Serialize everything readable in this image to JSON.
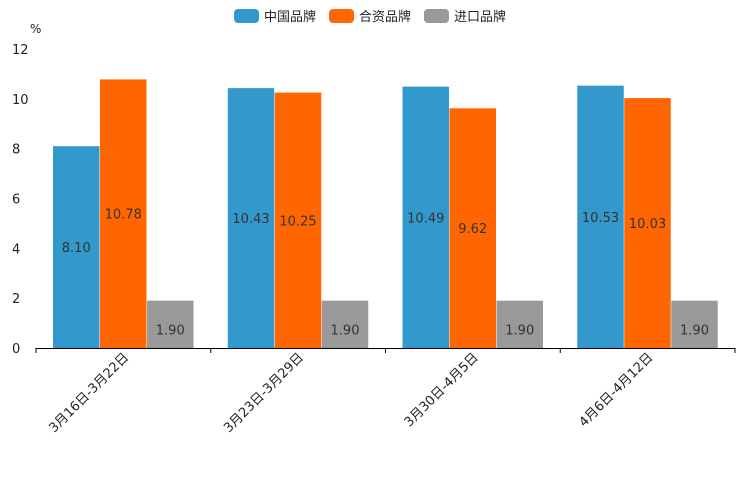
{
  "chart_data": {
    "type": "bar",
    "title": "",
    "xlabel": "",
    "ylabel": "%",
    "ylim": [
      0,
      12
    ],
    "yticks": [
      0,
      2,
      4,
      6,
      8,
      10,
      12
    ],
    "grid": false,
    "legend_position": "top-center",
    "categories": [
      "3月16日-3月22日",
      "3月23日-3月29日",
      "3月30日-4月5日",
      "4月6日-4月12日"
    ],
    "series": [
      {
        "name": "中国品牌",
        "color": "#3399cc",
        "values": [
          8.1,
          10.43,
          10.49,
          10.53
        ],
        "labels": [
          "8.10",
          "10.43",
          "10.49",
          "10.53"
        ]
      },
      {
        "name": "合资品牌",
        "color": "#ff6600",
        "values": [
          10.78,
          10.25,
          9.62,
          10.03
        ],
        "labels": [
          "10.78",
          "10.25",
          "9.62",
          "10.03"
        ]
      },
      {
        "name": "进口品牌",
        "color": "#999999",
        "values": [
          1.9,
          1.9,
          1.9,
          1.9
        ],
        "labels": [
          "1.90",
          "1.90",
          "1.90",
          "1.90"
        ]
      }
    ]
  }
}
